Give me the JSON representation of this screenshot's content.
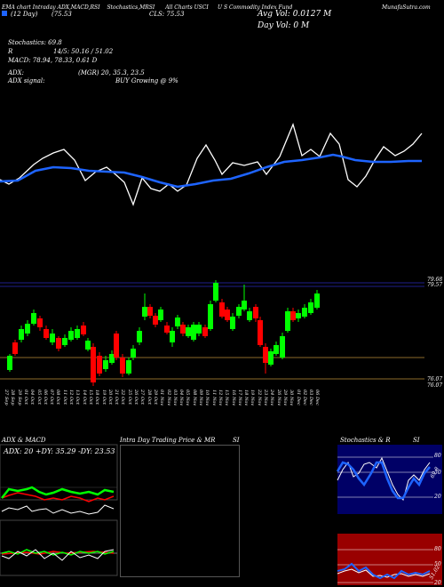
{
  "header": {
    "tabs": [
      "EMA chart",
      "Intraday",
      "ADX,MACD,RSI",
      "Stochastics,MRSI",
      "All Charts",
      "USCI"
    ],
    "company": "U S Commodity Index Fund",
    "site": "MunafaSutra.com",
    "date": "(12 Day)",
    "price_label": "(75.53",
    "close_label": "CLS: 75.53",
    "avg_vol": "Avg Vol: 0.0127 M",
    "day_vol": "Day Vol: 0 M",
    "stoch": "Stochastics: 69.8",
    "r_line": "R",
    "r_values": "14/5: 50.16 / 51.02",
    "macd": "MACD: 78.94, 78.33, 0.61 D",
    "adx": "ADX:",
    "adx_values": "(MGR) 20, 35.3, 23.5",
    "adx_signal": "ADX  signal:",
    "buy_text": "BUY Growing @ 9%"
  },
  "price_levels": [
    "79.68",
    "79.57",
    "76.07",
    "76.07"
  ],
  "dates": [
    "27 Sep",
    "28 Sep",
    "29 Sep",
    "01 Oct",
    "04 Oct",
    "05 Oct",
    "06 Oct",
    "07 Oct",
    "08 Oct",
    "11 Oct",
    "12 Oct",
    "13 Oct",
    "14 Oct",
    "15 Oct",
    "18 Oct",
    "19 Oct",
    "20 Oct",
    "21 Oct",
    "22 Oct",
    "25 Oct",
    "26 Oct",
    "27 Oct",
    "28 Oct",
    "29 Oct",
    "01 Nov",
    "02 Nov",
    "03 Nov",
    "04 Nov",
    "05 Nov",
    "08 Nov",
    "09 Nov",
    "10 Nov",
    "11 Nov",
    "12 Nov",
    "15 Nov",
    "16 Nov",
    "17 Nov",
    "18 Nov",
    "19 Nov",
    "22 Nov",
    "23 Nov",
    "24 Nov",
    "26 Nov",
    "29 Nov",
    "30 Nov",
    "01 Dec",
    "02 Dec",
    "03 Dec",
    "06 Dec"
  ],
  "bottom": {
    "adx_title": "ADX  & MACD",
    "adx_readout": "ADX: 20  +DY: 35.29  -DY: 23.53",
    "intraday_title": "Intra  Day Trading Price  & MR",
    "intraday_si": "SI",
    "stoch_title": "Stochastics & R",
    "stoch_si": "SI",
    "stoch_ticks": [
      "80",
      "50",
      "20"
    ],
    "mrsi_ticks": [
      "80",
      "50",
      "20"
    ],
    "stoch_val": "69.8",
    "mrsi_val": "51.02"
  },
  "colors": {
    "up": "#00ff00",
    "down": "#ff0000",
    "ema": "#1e64ff",
    "price_line": "#ffffff",
    "stoch_bg": "#000066",
    "mrsi_bg": "#990000"
  }
}
